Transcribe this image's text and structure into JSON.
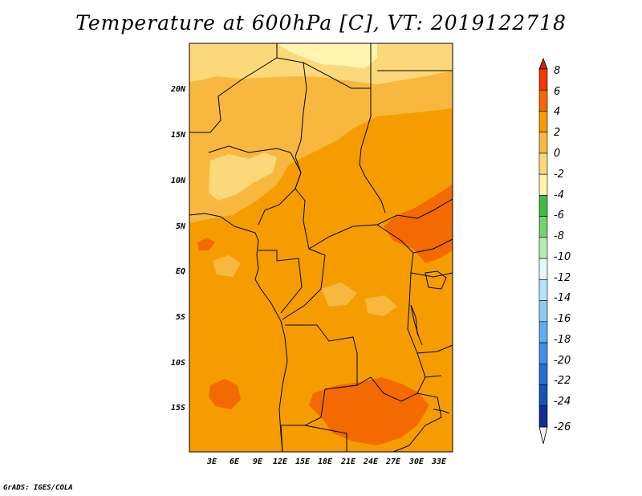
{
  "title": "Temperature at 600hPa [C], VT: 2019122718",
  "credit": "GrADS: IGES/COLA",
  "map": {
    "lat_labels": [
      "20N",
      "15N",
      "10N",
      "5N",
      "EQ",
      "5S",
      "10S",
      "15S"
    ],
    "lon_labels": [
      "3E",
      "6E",
      "9E",
      "12E",
      "15E",
      "18E",
      "21E",
      "24E",
      "27E",
      "30E",
      "33E"
    ]
  },
  "colorbar": {
    "levels": [
      "8",
      "6",
      "4",
      "2",
      "0",
      "-2",
      "-4",
      "-6",
      "-8",
      "-10",
      "-12",
      "-14",
      "-16",
      "-18",
      "-20",
      "-22",
      "-24",
      "-26"
    ],
    "colors": {
      "above_8": "#d62400",
      "6_to_8": "#f03800",
      "4_to_6": "#f26a00",
      "2_to_4": "#f59d00",
      "0_to_2": "#f8b840",
      "-2_to_0": "#fbd97a",
      "-4_to_-2": "#fff5b0",
      "-6_to_-4": "#3dbf3d",
      "-8_to_-6": "#6ed66e",
      "-10_to_-8": "#b2eeb2",
      "-12_to_-10": "#e8f8f8",
      "-14_to_-12": "#b8e4f8",
      "-16_to_-14": "#8ccaf4",
      "-18_to_-16": "#5fadee",
      "-20_to_-18": "#3d8fe6",
      "-22_to_-20": "#2470d6",
      "-24_to_-22": "#1850bc",
      "-26_to_-24": "#0e2f96",
      "below_-26": "#f0f0fc"
    }
  }
}
